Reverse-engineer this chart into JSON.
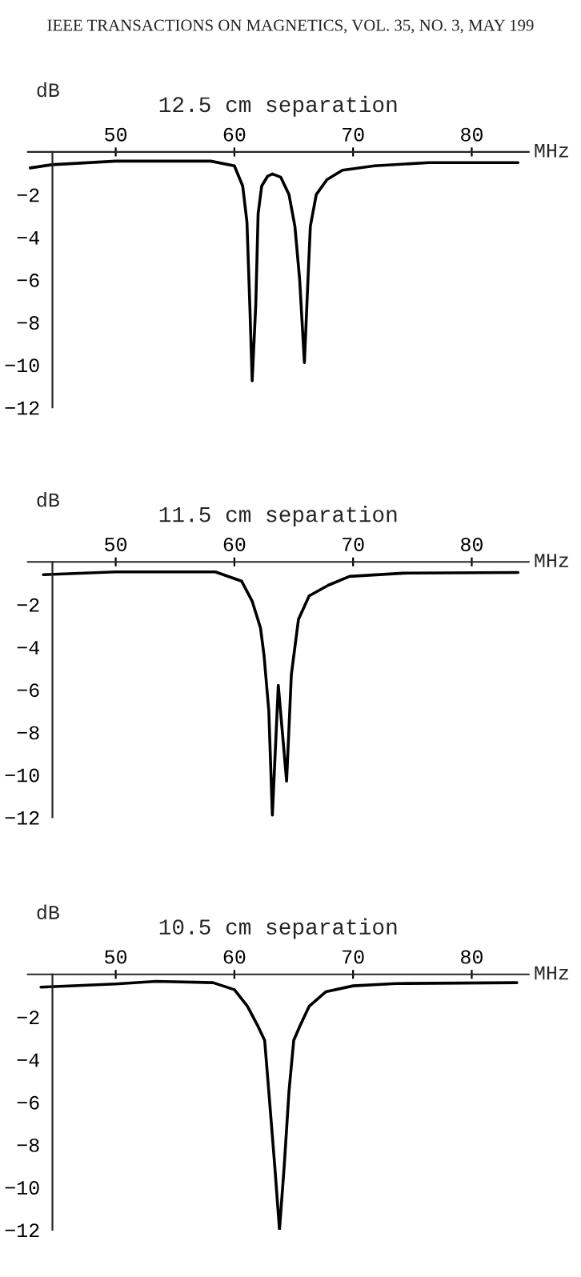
{
  "chart_data": [
    {
      "type": "line",
      "title": "12.5 cm separation",
      "xlabel": "MHz",
      "ylabel": "dB",
      "annotations": [
        "IEEE TRANSACTIONS ON MAGNETICS, VOL. 35, NO. 3, MAY 199"
      ],
      "xlim": [
        42.6,
        84.8
      ],
      "ylim": [
        -12,
        0
      ],
      "xticks": [
        50,
        60,
        70,
        80
      ],
      "yticks": [
        -2,
        -4,
        -6,
        -8,
        -10,
        -12
      ],
      "grid": false,
      "marker": "none",
      "line_style": "solid",
      "series": [
        {
          "color": "#000000",
          "x": [
            42.8,
            44.6,
            50,
            58,
            60,
            60.7,
            61.06,
            61.3,
            61.5,
            61.8,
            62.0,
            62.3,
            62.8,
            63.2,
            63.9,
            64.6,
            65.1,
            65.5,
            65.9,
            66.2,
            66.4,
            66.9,
            67.8,
            69.1,
            71.8,
            76.4,
            83.9
          ],
          "values": [
            -0.75,
            -0.6,
            -0.43,
            -0.43,
            -0.65,
            -1.6,
            -3.3,
            -7.2,
            -10.75,
            -7.2,
            -2.9,
            -1.6,
            -1.14,
            -1.03,
            -1.18,
            -2.0,
            -3.5,
            -6.0,
            -9.9,
            -6.0,
            -3.5,
            -2.0,
            -1.3,
            -0.86,
            -0.65,
            -0.5,
            -0.5
          ]
        }
      ]
    },
    {
      "type": "line",
      "title": "11.5 cm separation",
      "xlabel": "MHz",
      "ylabel": "dB",
      "xlim": [
        42.6,
        84.8
      ],
      "ylim": [
        -12,
        0
      ],
      "xticks": [
        50,
        60,
        70,
        80
      ],
      "yticks": [
        -2,
        -4,
        -6,
        -8,
        -10,
        -12
      ],
      "grid": false,
      "marker": "none",
      "line_style": "solid",
      "series": [
        {
          "color": "#000000",
          "x": [
            43.9,
            50,
            58.4,
            60.6,
            61.5,
            62.2,
            62.5,
            62.9,
            63.2,
            63.7,
            64.4,
            64.8,
            65.4,
            66.3,
            67.9,
            69.7,
            74.2,
            83.9
          ],
          "values": [
            -0.6,
            -0.47,
            -0.47,
            -0.9,
            -1.85,
            -3.1,
            -4.4,
            -7.0,
            -11.9,
            -5.8,
            -10.3,
            -5.3,
            -2.7,
            -1.6,
            -1.1,
            -0.68,
            -0.53,
            -0.5
          ]
        }
      ]
    },
    {
      "type": "line",
      "title": "10.5 cm separation",
      "xlabel": "MHz",
      "ylabel": "dB",
      "xlim": [
        42.6,
        84.8
      ],
      "ylim": [
        -12,
        0
      ],
      "xticks": [
        50,
        60,
        70,
        80
      ],
      "yticks": [
        -2,
        -4,
        -6,
        -8,
        -10,
        -12
      ],
      "grid": false,
      "marker": "none",
      "line_style": "solid",
      "series": [
        {
          "color": "#000000",
          "x": [
            43.7,
            50,
            53.4,
            58.2,
            60,
            61.1,
            62.0,
            62.55,
            62.9,
            63.4,
            63.8,
            64.2,
            64.6,
            65.0,
            65.5,
            66.3,
            67.7,
            70,
            73.6,
            83.8
          ],
          "values": [
            -0.6,
            -0.45,
            -0.33,
            -0.39,
            -0.72,
            -1.5,
            -2.45,
            -3.1,
            -5.5,
            -9.0,
            -12.0,
            -9.0,
            -5.5,
            -3.1,
            -2.45,
            -1.5,
            -0.82,
            -0.54,
            -0.43,
            -0.39
          ]
        }
      ]
    }
  ]
}
